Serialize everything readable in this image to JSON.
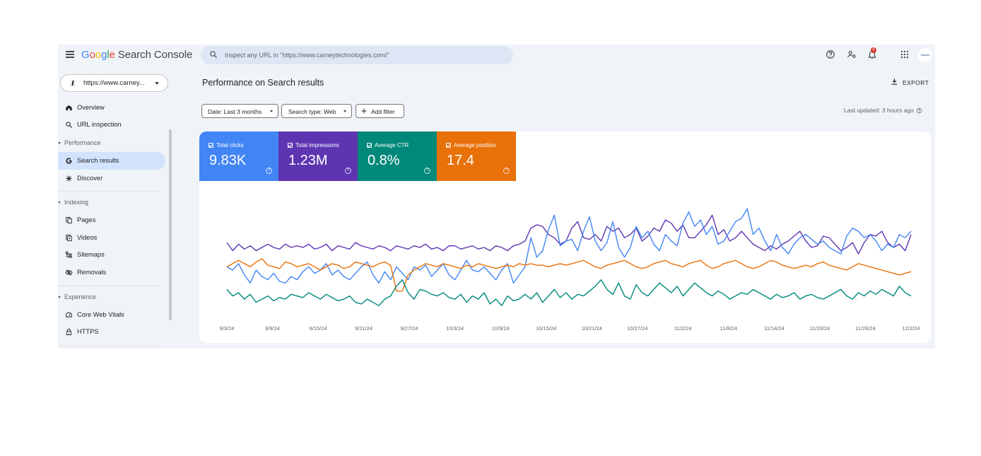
{
  "app": {
    "logo_letters": [
      "G",
      "o",
      "o",
      "g",
      "l",
      "e"
    ],
    "logo_rest": " Search Console",
    "search_placeholder": "Inspect any URL in \"https://www.carneytechnologies.com/\"",
    "notification_count": "6",
    "avatar_text": "Kaemo",
    "icons": [
      "menu-icon",
      "search-icon",
      "help-icon",
      "manage-users-icon",
      "notifications-icon",
      "apps-icon"
    ]
  },
  "sidebar": {
    "property_label": "https://www.carney...",
    "items": [
      {
        "label": "Overview",
        "icon": "home-icon"
      },
      {
        "label": "URL inspection",
        "icon": "search-icon"
      }
    ],
    "sections": [
      {
        "title": "Performance",
        "items": [
          {
            "label": "Search results",
            "icon": "google-g-icon",
            "active": true
          },
          {
            "label": "Discover",
            "icon": "discover-icon"
          }
        ]
      },
      {
        "title": "Indexing",
        "items": [
          {
            "label": "Pages",
            "icon": "pages-icon"
          },
          {
            "label": "Videos",
            "icon": "videos-icon"
          },
          {
            "label": "Sitemaps",
            "icon": "sitemaps-icon"
          },
          {
            "label": "Removals",
            "icon": "removals-icon"
          }
        ]
      },
      {
        "title": "Experience",
        "items": [
          {
            "label": "Core Web Vitals",
            "icon": "speed-icon"
          },
          {
            "label": "HTTPS",
            "icon": "lock-icon"
          }
        ]
      }
    ]
  },
  "main": {
    "title": "Performance on Search results",
    "export_label": "EXPORT",
    "filters": {
      "date": "Date: Last 3 months",
      "search_type": "Search type: Web",
      "add_filter": "Add filter"
    },
    "last_updated": "Last updated: 3 hours ago"
  },
  "metrics": [
    {
      "label": "Total clicks",
      "value": "9.83K",
      "color": "#4285f4"
    },
    {
      "label": "Total impressions",
      "value": "1.23M",
      "color": "#5e35b1"
    },
    {
      "label": "Average CTR",
      "value": "0.8%",
      "color": "#00897b"
    },
    {
      "label": "Average position",
      "value": "17.4",
      "color": "#e8710a"
    }
  ],
  "chart_data": {
    "type": "line",
    "title": "",
    "xlabel": "",
    "ylabel": "",
    "x_tick_labels": [
      "9/3/24",
      "9/9/24",
      "9/15/24",
      "9/21/24",
      "9/27/24",
      "10/3/24",
      "10/9/24",
      "10/15/24",
      "10/21/24",
      "10/27/24",
      "11/2/24",
      "11/8/24",
      "11/14/24",
      "11/20/24",
      "11/26/24",
      "12/2/24"
    ],
    "y_axis_shown": false,
    "grid": false,
    "series_scale_note_values_are_relative": true,
    "series": [
      {
        "color": "#5e35b1",
        "values": [
          75,
          70,
          74,
          71,
          73,
          70,
          72,
          74,
          72,
          71,
          74,
          72,
          73,
          72,
          74,
          71,
          72,
          74,
          70,
          73,
          72,
          71,
          75,
          73,
          72,
          71,
          73,
          72,
          70,
          73,
          72,
          71,
          73,
          72,
          74,
          71,
          72,
          70,
          73,
          73,
          71,
          72,
          73,
          71,
          72,
          70,
          73,
          72,
          70,
          73,
          74,
          76,
          84,
          86,
          85,
          80,
          78,
          74,
          76,
          84,
          88,
          78,
          77,
          80,
          76,
          85,
          82,
          84,
          78,
          80,
          84,
          76,
          79,
          84,
          82,
          89,
          87,
          82,
          86,
          78,
          78,
          82,
          86,
          92,
          80,
          83,
          76,
          78,
          82,
          78,
          74,
          72,
          70,
          73,
          71,
          74,
          76,
          79,
          82,
          76,
          72,
          73,
          79,
          78,
          74,
          70,
          72,
          75,
          68,
          75,
          80,
          79,
          82,
          75,
          72,
          74,
          70,
          80
        ]
      },
      {
        "color": "#4285f4",
        "values": [
          60,
          58,
          62,
          55,
          50,
          58,
          54,
          52,
          56,
          51,
          50,
          54,
          52,
          57,
          60,
          56,
          58,
          62,
          55,
          58,
          54,
          52,
          56,
          60,
          63,
          55,
          50,
          57,
          52,
          60,
          56,
          52,
          60,
          58,
          61,
          54,
          58,
          62,
          55,
          52,
          58,
          64,
          58,
          57,
          60,
          56,
          52,
          58,
          62,
          50,
          55,
          60,
          78,
          66,
          70,
          83,
          92,
          73,
          76,
          77,
          70,
          82,
          91,
          76,
          70,
          75,
          88,
          72,
          66,
          72,
          85,
          78,
          82,
          74,
          70,
          80,
          76,
          73,
          87,
          94,
          85,
          89,
          80,
          85,
          74,
          76,
          82,
          88,
          90,
          96,
          80,
          84,
          76,
          70,
          80,
          72,
          68,
          74,
          78,
          80,
          77,
          74,
          76,
          72,
          70,
          68,
          79,
          84,
          82,
          78,
          80,
          76,
          70,
          74,
          72,
          80,
          78,
          82
        ]
      },
      {
        "color": "#e8710a",
        "values": [
          60,
          62,
          64,
          62,
          60,
          63,
          65,
          61,
          60,
          59,
          63,
          62,
          60,
          61,
          62,
          60,
          58,
          60,
          62,
          61,
          59,
          60,
          63,
          62,
          61,
          60,
          62,
          63,
          61,
          45,
          45,
          55,
          58,
          60,
          62,
          61,
          60,
          62,
          61,
          60,
          59,
          61,
          60,
          62,
          61,
          60,
          59,
          60,
          61,
          60,
          62,
          61,
          62,
          61,
          61,
          60,
          61,
          62,
          61,
          62,
          63,
          64,
          62,
          60,
          59,
          61,
          62,
          63,
          64,
          62,
          60,
          59,
          60,
          62,
          63,
          64,
          62,
          61,
          60,
          62,
          63,
          64,
          61,
          59,
          60,
          62,
          63,
          64,
          62,
          60,
          59,
          60,
          62,
          64,
          63,
          61,
          60,
          59,
          60,
          61,
          60,
          62,
          63,
          61,
          60,
          59,
          58,
          60,
          62,
          61,
          60,
          59,
          58,
          57,
          56,
          55,
          56,
          57
        ]
      },
      {
        "color": "#00897b",
        "values": [
          46,
          42,
          44,
          40,
          43,
          38,
          40,
          42,
          39,
          41,
          40,
          43,
          42,
          41,
          44,
          42,
          40,
          43,
          41,
          39,
          40,
          42,
          38,
          37,
          40,
          38,
          36,
          40,
          42,
          48,
          52,
          44,
          40,
          46,
          45,
          43,
          42,
          44,
          41,
          40,
          43,
          38,
          42,
          40,
          44,
          37,
          40,
          36,
          42,
          39,
          40,
          43,
          40,
          44,
          38,
          42,
          46,
          41,
          44,
          40,
          43,
          42,
          45,
          48,
          52,
          46,
          43,
          50,
          42,
          40,
          49,
          44,
          42,
          46,
          50,
          47,
          44,
          48,
          42,
          46,
          50,
          47,
          44,
          42,
          45,
          43,
          40,
          42,
          44,
          43,
          46,
          44,
          42,
          40,
          43,
          41,
          42,
          44,
          40,
          42,
          43,
          41,
          40,
          42,
          44,
          46,
          42,
          40,
          44,
          42,
          45,
          43,
          46,
          44,
          42,
          48,
          44,
          42
        ]
      }
    ]
  }
}
